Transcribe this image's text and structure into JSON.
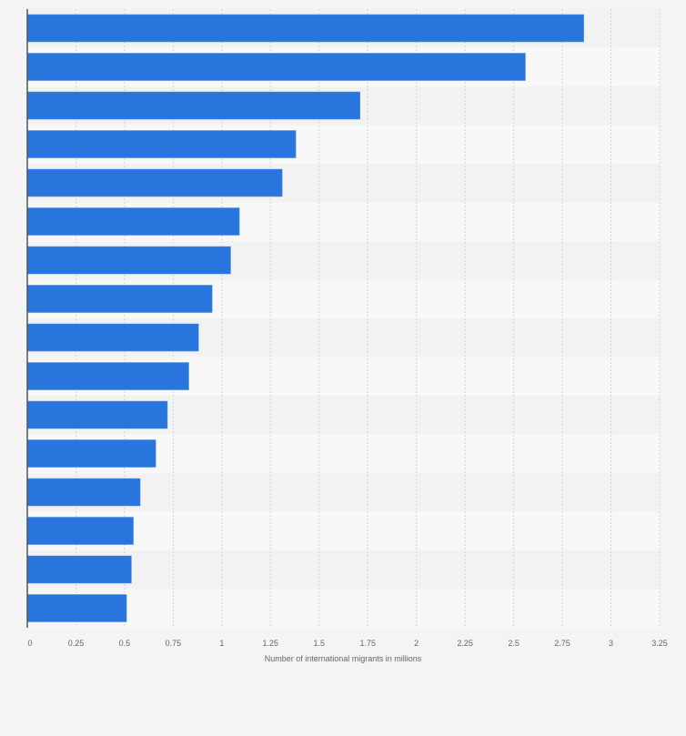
{
  "chart_data": {
    "type": "bar",
    "orientation": "horizontal",
    "title": "",
    "xlabel": "Number of international migrants in millions",
    "ylabel": "",
    "xlim": [
      0,
      3.25
    ],
    "ticks": [
      "0",
      "0.25",
      "0.5",
      "0.75",
      "1",
      "1.25",
      "1.5",
      "1.75",
      "2",
      "2.25",
      "2.5",
      "2.75",
      "3",
      "3.25"
    ],
    "tick_values": [
      0,
      0.25,
      0.5,
      0.75,
      1,
      1.25,
      1.5,
      1.75,
      2,
      2.25,
      2.5,
      2.75,
      3,
      3.25
    ],
    "grid": true,
    "bar_color": "#2876dd",
    "values": [
      2.86,
      2.56,
      1.71,
      1.38,
      1.31,
      1.09,
      1.045,
      0.95,
      0.88,
      0.83,
      0.72,
      0.66,
      0.58,
      0.545,
      0.535,
      0.51
    ]
  }
}
